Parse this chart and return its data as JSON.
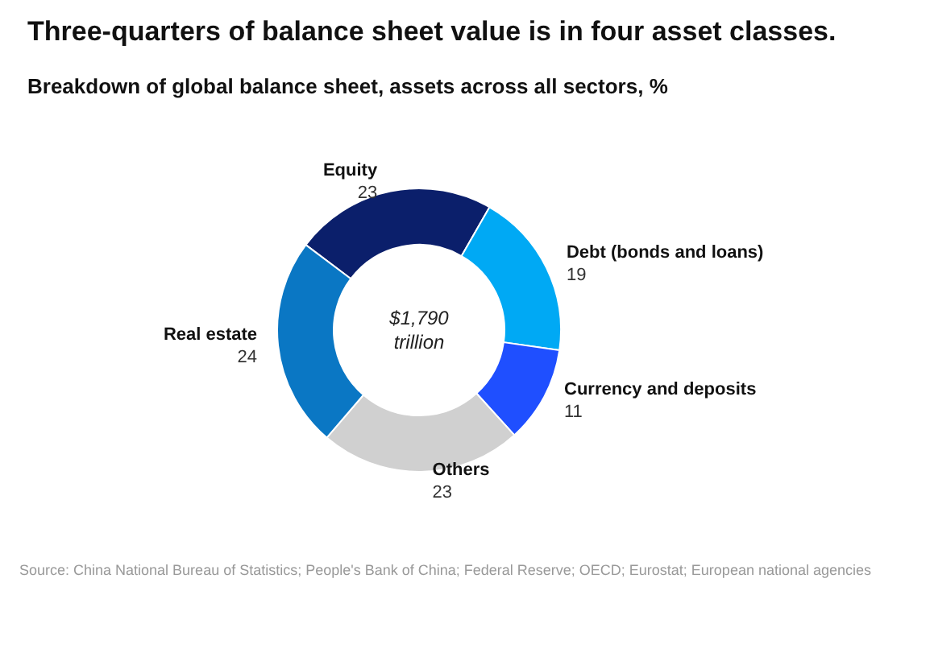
{
  "chart_data": {
    "type": "donut",
    "title": "Three-quarters of balance sheet value is in four asset classes.",
    "subtitle": "Breakdown of global balance sheet, assets across all sectors, %",
    "categories": [
      "Equity",
      "Debt (bonds and loans)",
      "Currency and deposits",
      "Others",
      "Real estate"
    ],
    "values": [
      23,
      19,
      11,
      23,
      24
    ],
    "colors": [
      "#0b1f6b",
      "#00a9f4",
      "#1f4fff",
      "#d0d0d0",
      "#0a77c4"
    ],
    "data_labels": true,
    "legend": false,
    "annotations": [
      "$1,790 trillion",
      "Source: China National Bureau of Statistics; People's Bank of China; Federal Reserve; OECD; Eurostat; European national agencies"
    ]
  }
}
